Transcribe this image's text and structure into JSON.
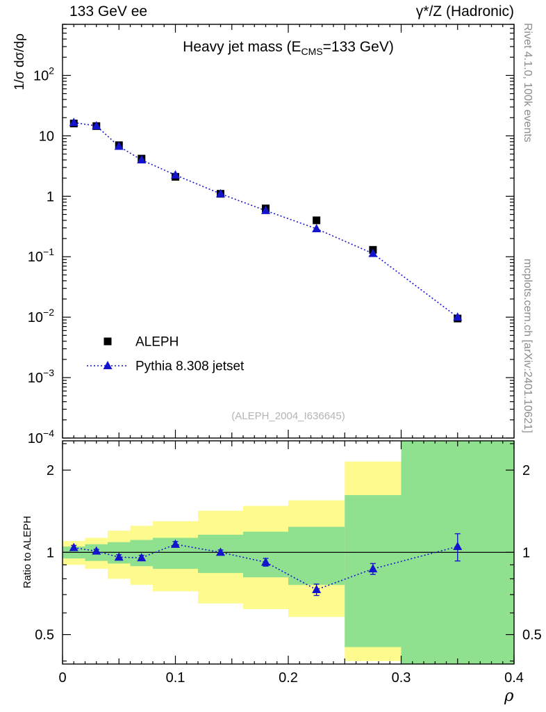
{
  "header": {
    "left": "133 GeV ee",
    "right": "γ*/Z (Hadronic)"
  },
  "side_notes": {
    "top_right": "Rivet 4.1.0, 100k events",
    "bottom_right": "mcplots.cern.ch [arXiv:2401.10621]"
  },
  "watermark": "(ALEPH_2004_I636645)",
  "legend": [
    {
      "label": "ALEPH",
      "marker": "square",
      "color": "#000000"
    },
    {
      "label": "Pythia 8.308 jetset",
      "marker": "triangle",
      "color": "#1414cc",
      "line": "dotted"
    }
  ],
  "chart_data": {
    "type": "line",
    "title": {
      "pre": "Heavy jet mass (E",
      "sub": "CMS",
      "post": "=133 GeV)"
    },
    "xlabel": "ρ",
    "ylabel_main": "1/σ dσ/dρ",
    "ylabel_ratio": "Ratio to ALEPH",
    "xlim": [
      0,
      0.4
    ],
    "x_major_ticks": [
      0,
      0.1,
      0.2,
      0.3,
      0.4
    ],
    "x_tick_labels": [
      "0",
      "0.1",
      "0.2",
      "0.3",
      "0.4"
    ],
    "main_ylim": [
      0.0001,
      700
    ],
    "main_decades": [
      2,
      1,
      0,
      -1,
      -2,
      -3,
      -4
    ],
    "x": [
      0.01,
      0.03,
      0.05,
      0.07,
      0.1,
      0.14,
      0.18,
      0.225,
      0.275,
      0.35
    ],
    "bin_edges": [
      0,
      0.02,
      0.04,
      0.06,
      0.08,
      0.12,
      0.16,
      0.2,
      0.25,
      0.3,
      0.4
    ],
    "series": [
      {
        "name": "ALEPH",
        "marker": "square",
        "color": "#000000",
        "values": [
          16,
          14.5,
          7.0,
          4.2,
          2.1,
          1.1,
          0.63,
          0.4,
          0.13,
          0.0095
        ]
      },
      {
        "name": "Pythia 8.308 jetset",
        "marker": "triangle",
        "color": "#1414cc",
        "line": "dotted",
        "values": [
          16.6,
          14.6,
          6.7,
          4.0,
          2.25,
          1.1,
          0.58,
          0.29,
          0.113,
          0.01
        ]
      }
    ],
    "ratio": {
      "ylim": [
        0.39,
        2.56
      ],
      "yticks": [
        0.5,
        1,
        2
      ],
      "ytick_labels": [
        "0.5",
        "1",
        "2"
      ],
      "minor_yticks": [
        0.4,
        0.6,
        0.7,
        0.8,
        0.9,
        2.5
      ],
      "values": [
        1.04,
        1.01,
        0.96,
        0.955,
        1.07,
        1.0,
        0.92,
        0.73,
        0.87,
        1.05
      ],
      "errors": [
        0.02,
        0.015,
        0.02,
        0.02,
        0.025,
        0.02,
        0.03,
        0.035,
        0.04,
        0.12
      ],
      "bands": [
        {
          "x0": 0.0,
          "x1": 0.02,
          "yellow": [
            0.9,
            1.1
          ],
          "green": [
            0.95,
            1.05
          ]
        },
        {
          "x0": 0.02,
          "x1": 0.04,
          "yellow": [
            0.87,
            1.13
          ],
          "green": [
            0.93,
            1.07
          ]
        },
        {
          "x0": 0.04,
          "x1": 0.06,
          "yellow": [
            0.8,
            1.2
          ],
          "green": [
            0.91,
            1.09
          ]
        },
        {
          "x0": 0.06,
          "x1": 0.08,
          "yellow": [
            0.76,
            1.25
          ],
          "green": [
            0.89,
            1.11
          ]
        },
        {
          "x0": 0.08,
          "x1": 0.12,
          "yellow": [
            0.72,
            1.3
          ],
          "green": [
            0.87,
            1.13
          ]
        },
        {
          "x0": 0.12,
          "x1": 0.16,
          "yellow": [
            0.65,
            1.42
          ],
          "green": [
            0.84,
            1.16
          ]
        },
        {
          "x0": 0.16,
          "x1": 0.2,
          "yellow": [
            0.62,
            1.48
          ],
          "green": [
            0.81,
            1.19
          ]
        },
        {
          "x0": 0.2,
          "x1": 0.25,
          "yellow": [
            0.58,
            1.55
          ],
          "green": [
            0.76,
            1.24
          ]
        },
        {
          "x0": 0.25,
          "x1": 0.3,
          "yellow": [
            0.4,
            2.15
          ],
          "green": [
            0.45,
            1.62
          ]
        },
        {
          "x0": 0.3,
          "x1": 0.4,
          "yellow": [
            0.39,
            2.56
          ],
          "green": [
            0.39,
            2.56
          ]
        }
      ]
    },
    "colors": {
      "yellow": "#fdfb8d",
      "green": "#8fe18f",
      "pythia_blue": "#1414cc",
      "ref_line": "#000000"
    }
  }
}
